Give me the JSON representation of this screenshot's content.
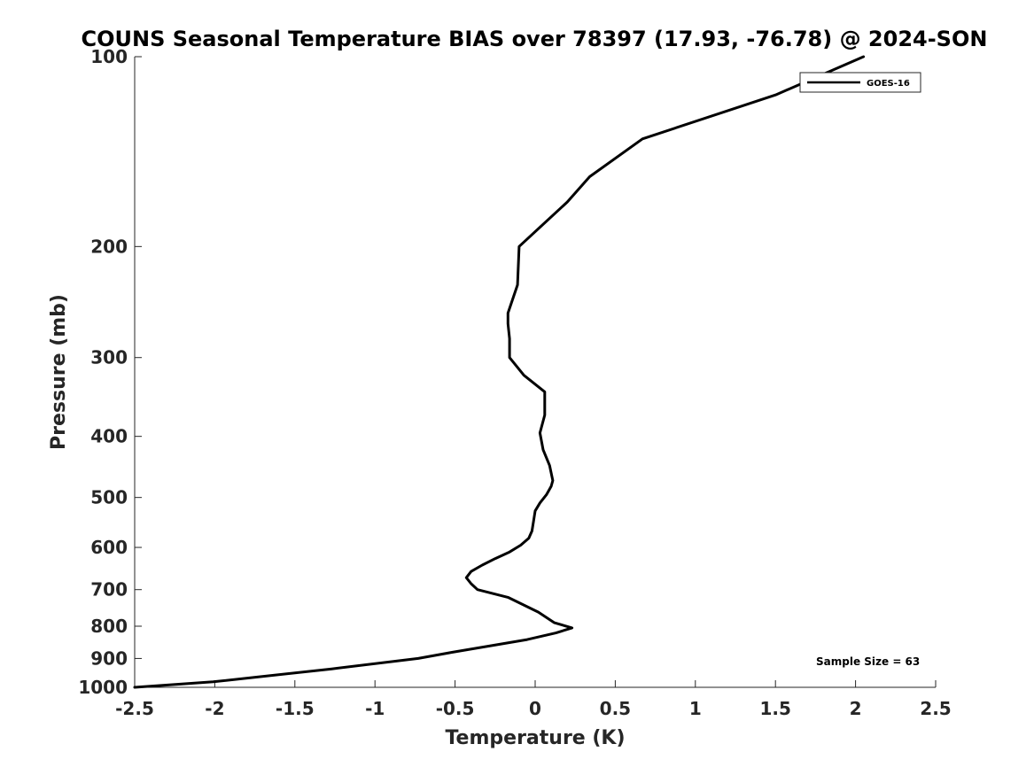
{
  "chart_data": {
    "type": "line",
    "title": "COUNS Seasonal Temperature BIAS over 78397 (17.93, -76.78) @ 2024-SON",
    "xlabel": "Temperature (K)",
    "ylabel": "Pressure (mb)",
    "xlim": [
      -2.5,
      2.5
    ],
    "ylim": [
      1000,
      100
    ],
    "y_scale": "log",
    "y_reversed": true,
    "grid": false,
    "legend_placement": "top-right",
    "x_ticks": [
      -2.5,
      -2,
      -1.5,
      -1,
      -0.5,
      0,
      0.5,
      1,
      1.5,
      2,
      2.5
    ],
    "x_tick_labels": [
      "-2.5",
      "-2",
      "-1.5",
      "-1",
      "-0.5",
      "0",
      "0.5",
      "1",
      "1.5",
      "2",
      "2.5"
    ],
    "y_ticks": [
      100,
      200,
      300,
      400,
      500,
      600,
      700,
      800,
      900,
      1000
    ],
    "y_tick_labels": [
      "100",
      "200",
      "300",
      "400",
      "500",
      "600",
      "700",
      "800",
      "900",
      "1000"
    ],
    "series": [
      {
        "name": "GOES-16",
        "color": "#000000",
        "x": [
          2.05,
          1.5,
          0.67,
          0.34,
          0.2,
          -0.1,
          -0.11,
          -0.17,
          -0.17,
          -0.16,
          -0.16,
          -0.07,
          0.06,
          0.06,
          0.03,
          0.05,
          0.09,
          0.11,
          0.1,
          0.07,
          0.03,
          0.0,
          -0.01,
          -0.02,
          -0.04,
          -0.09,
          -0.16,
          -0.25,
          -0.33,
          -0.4,
          -0.43,
          -0.4,
          -0.36,
          -0.17,
          0.02,
          0.12,
          0.23,
          0.13,
          -0.05,
          -0.52,
          -0.73,
          -1.27,
          -2.01,
          -2.5
        ],
        "y": [
          100,
          115,
          135,
          155,
          170,
          200,
          230,
          255,
          265,
          280,
          300,
          320,
          340,
          370,
          395,
          420,
          445,
          470,
          480,
          495,
          510,
          525,
          545,
          565,
          580,
          595,
          610,
          625,
          640,
          655,
          670,
          685,
          700,
          720,
          760,
          790,
          805,
          820,
          840,
          880,
          900,
          935,
          980,
          1000
        ]
      }
    ],
    "annotation": "Sample Size = 63"
  }
}
